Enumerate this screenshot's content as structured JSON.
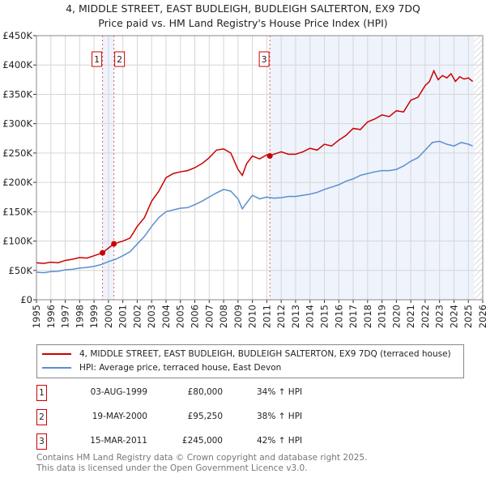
{
  "chart_data": {
    "type": "line",
    "title": "4, MIDDLE STREET, EAST BUDLEIGH, BUDLEIGH SALTERTON, EX9 7DQ",
    "subtitle": "Price paid vs. HM Land Registry's House Price Index (HPI)",
    "xlim": [
      1995,
      2026
    ],
    "ylim": [
      0,
      450000
    ],
    "xticks": [
      "1995",
      "1996",
      "1997",
      "1998",
      "1999",
      "2000",
      "2001",
      "2002",
      "2003",
      "2004",
      "2005",
      "2006",
      "2007",
      "2008",
      "2009",
      "2010",
      "2011",
      "2012",
      "2013",
      "2014",
      "2015",
      "2016",
      "2017",
      "2018",
      "2019",
      "2020",
      "2021",
      "2022",
      "2023",
      "2024",
      "2025",
      "2026"
    ],
    "yticks": [
      {
        "v": 0,
        "l": "£0"
      },
      {
        "v": 50000,
        "l": "£50K"
      },
      {
        "v": 100000,
        "l": "£100K"
      },
      {
        "v": 150000,
        "l": "£150K"
      },
      {
        "v": 200000,
        "l": "£200K"
      },
      {
        "v": 250000,
        "l": "£250K"
      },
      {
        "v": 300000,
        "l": "£300K"
      },
      {
        "v": 350000,
        "l": "£350K"
      },
      {
        "v": 400000,
        "l": "£400K"
      },
      {
        "v": 450000,
        "l": "£450K"
      }
    ],
    "grid": true,
    "series": [
      {
        "name": "4, MIDDLE STREET, EAST BUDLEIGH, BUDLEIGH SALTERTON, EX9 7DQ (terraced house)",
        "color": "#cc0000",
        "x": [
          1995,
          1995.5,
          1996,
          1996.5,
          1997,
          1997.5,
          1998,
          1998.5,
          1999,
          1999.59,
          2000,
          2000.38,
          2001,
          2001.5,
          2002,
          2002.5,
          2003,
          2003.5,
          2004,
          2004.5,
          2005,
          2005.5,
          2006,
          2006.5,
          2007,
          2007.5,
          2008,
          2008.5,
          2009,
          2009.3,
          2009.6,
          2010,
          2010.5,
          2011,
          2011.21,
          2011.5,
          2012,
          2012.5,
          2013,
          2013.5,
          2014,
          2014.5,
          2015,
          2015.5,
          2016,
          2016.5,
          2017,
          2017.5,
          2018,
          2018.5,
          2019,
          2019.5,
          2020,
          2020.5,
          2021,
          2021.5,
          2022,
          2022.3,
          2022.6,
          2022.9,
          2023.2,
          2023.5,
          2023.8,
          2024.1,
          2024.4,
          2024.7,
          2025,
          2025.3
        ],
        "y": [
          63000,
          62000,
          64000,
          63000,
          67000,
          69000,
          72000,
          71000,
          75000,
          80000,
          88000,
          95250,
          100000,
          105000,
          125000,
          140000,
          168000,
          185000,
          208000,
          215000,
          218000,
          220000,
          225000,
          232000,
          242000,
          255000,
          257000,
          250000,
          222000,
          212000,
          232000,
          245000,
          240000,
          247000,
          245000,
          248000,
          252000,
          248000,
          248000,
          252000,
          258000,
          255000,
          265000,
          262000,
          272000,
          280000,
          292000,
          290000,
          303000,
          308000,
          315000,
          312000,
          322000,
          320000,
          340000,
          345000,
          365000,
          372000,
          390000,
          375000,
          382000,
          378000,
          385000,
          372000,
          380000,
          376000,
          378000,
          372000
        ]
      },
      {
        "name": "HPI: Average price, terraced house, East Devon",
        "color": "#5b8fd0",
        "x": [
          1995,
          1995.5,
          1996,
          1996.5,
          1997,
          1997.5,
          1998,
          1998.5,
          1999,
          1999.5,
          2000,
          2000.5,
          2001,
          2001.5,
          2002,
          2002.5,
          2003,
          2003.5,
          2004,
          2004.5,
          2005,
          2005.5,
          2006,
          2006.5,
          2007,
          2007.5,
          2008,
          2008.5,
          2009,
          2009.3,
          2009.6,
          2010,
          2010.5,
          2011,
          2011.5,
          2012,
          2012.5,
          2013,
          2013.5,
          2014,
          2014.5,
          2015,
          2015.5,
          2016,
          2016.5,
          2017,
          2017.5,
          2018,
          2018.5,
          2019,
          2019.5,
          2020,
          2020.5,
          2021,
          2021.5,
          2022,
          2022.5,
          2023,
          2023.5,
          2024,
          2024.5,
          2025,
          2025.3
        ],
        "y": [
          47000,
          46000,
          48000,
          48500,
          51000,
          52000,
          54000,
          55000,
          57000,
          60000,
          65000,
          69000,
          75000,
          82000,
          95000,
          108000,
          125000,
          140000,
          150000,
          153000,
          156000,
          157000,
          162000,
          168000,
          175000,
          182000,
          188000,
          185000,
          172000,
          155000,
          165000,
          178000,
          172000,
          175000,
          173000,
          174000,
          176000,
          176000,
          178000,
          180000,
          183000,
          188000,
          192000,
          196000,
          202000,
          206000,
          212000,
          215000,
          218000,
          220000,
          220000,
          222000,
          228000,
          236000,
          242000,
          255000,
          268000,
          270000,
          265000,
          262000,
          268000,
          265000,
          262000
        ]
      }
    ],
    "sales": [
      {
        "label": "1",
        "x": 1999.59,
        "price": 80000,
        "date": "03-AUG-1999",
        "price_text": "£80,000",
        "hpi": "34% ↑ HPI"
      },
      {
        "label": "2",
        "x": 2000.38,
        "price": 95250,
        "date": "19-MAY-2000",
        "price_text": "£95,250",
        "hpi": "38% ↑ HPI"
      },
      {
        "label": "3",
        "x": 2011.21,
        "price": 245000,
        "date": "15-MAR-2011",
        "price_text": "£245,000",
        "hpi": "42% ↑ HPI"
      }
    ],
    "shaded_color": "#eef3fc",
    "hatch_from": 2025.4
  },
  "footer": {
    "line1": "Contains HM Land Registry data © Crown copyright and database right 2025.",
    "line2": "This data is licensed under the Open Government Licence v3.0."
  }
}
